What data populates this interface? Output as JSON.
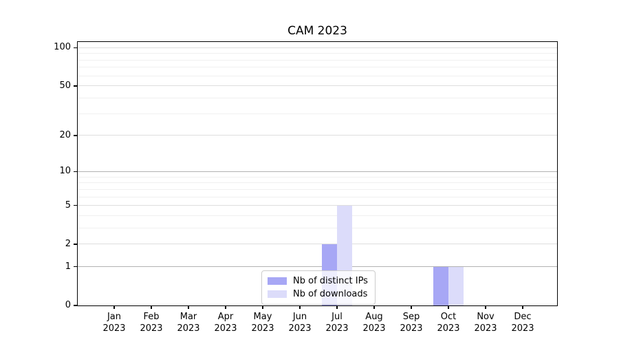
{
  "chart_data": {
    "type": "bar",
    "title": "CAM 2023",
    "yscale": "log1p",
    "ylim": [
      0,
      111
    ],
    "y_ticks": [
      0,
      1,
      2,
      5,
      10,
      20,
      50,
      100
    ],
    "y_strong_grid": [
      1,
      10
    ],
    "y_minor_ticks": [
      3,
      4,
      6,
      7,
      8,
      9,
      30,
      40,
      60,
      70,
      80,
      90
    ],
    "grid": "horizontal",
    "legend_position": "lower center",
    "categories": [
      {
        "label": "Jan",
        "sub": "2023"
      },
      {
        "label": "Feb",
        "sub": "2023"
      },
      {
        "label": "Mar",
        "sub": "2023"
      },
      {
        "label": "Apr",
        "sub": "2023"
      },
      {
        "label": "May",
        "sub": "2023"
      },
      {
        "label": "Jun",
        "sub": "2023"
      },
      {
        "label": "Jul",
        "sub": "2023"
      },
      {
        "label": "Aug",
        "sub": "2023"
      },
      {
        "label": "Sep",
        "sub": "2023"
      },
      {
        "label": "Oct",
        "sub": "2023"
      },
      {
        "label": "Nov",
        "sub": "2023"
      },
      {
        "label": "Dec",
        "sub": "2023"
      }
    ],
    "series": [
      {
        "name": "Nb of distinct IPs",
        "color": "#a7a7f5",
        "values": [
          0,
          0,
          0,
          0,
          0,
          0,
          2,
          0,
          0,
          1,
          0,
          0
        ]
      },
      {
        "name": "Nb of downloads",
        "color": "#dcdcfa",
        "values": [
          0,
          0,
          0,
          0,
          0,
          0,
          5,
          0,
          0,
          1,
          0,
          0
        ]
      }
    ]
  }
}
